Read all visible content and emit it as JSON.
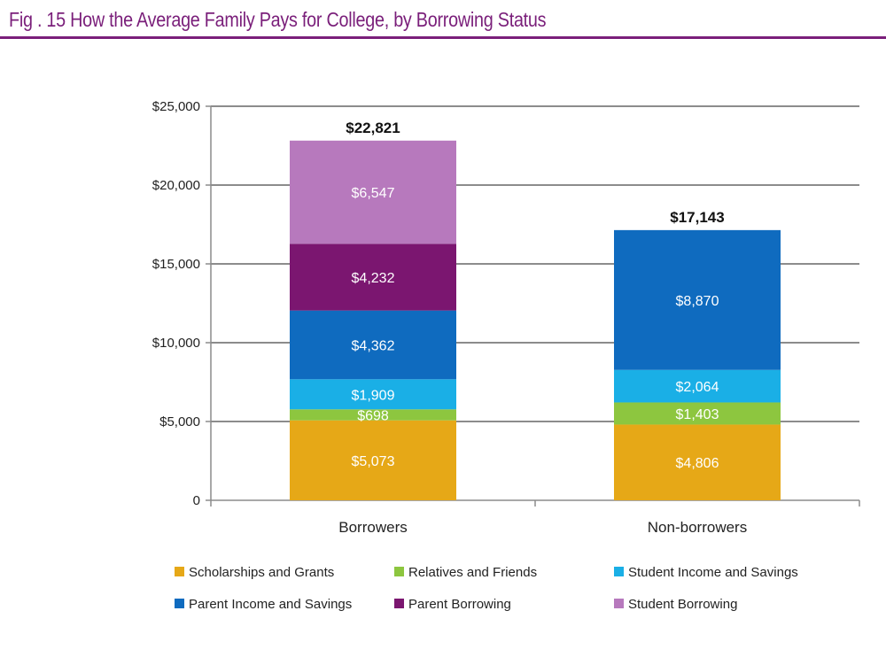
{
  "figure": {
    "title": "Fig . 15  How the Average Family Pays for College, by Borrowing Status",
    "accent_color": "#7a1f7a"
  },
  "chart_data": {
    "type": "bar",
    "stacked": true,
    "categories": [
      "Borrowers",
      "Non-borrowers"
    ],
    "series": [
      {
        "name": "Scholarships and Grants",
        "color": "#e6a817",
        "values": [
          5073,
          4806
        ],
        "labels": [
          "$5,073",
          "$4,806"
        ]
      },
      {
        "name": "Relatives and Friends",
        "color": "#8dc63f",
        "values": [
          698,
          1403
        ],
        "labels": [
          "$698",
          "$1,403"
        ]
      },
      {
        "name": "Student Income and Savings",
        "color": "#1aafe6",
        "values": [
          1909,
          2064
        ],
        "labels": [
          "$1,909",
          "$2,064"
        ]
      },
      {
        "name": "Parent Income and Savings",
        "color": "#0f6bbf",
        "values": [
          4362,
          8870
        ],
        "labels": [
          "$4,362",
          "$8,870"
        ]
      },
      {
        "name": "Parent Borrowing",
        "color": "#7b1670",
        "values": [
          4232,
          0
        ],
        "labels": [
          "$4,232",
          ""
        ]
      },
      {
        "name": "Student Borrowing",
        "color": "#b779bd",
        "values": [
          6547,
          0
        ],
        "labels": [
          "$6,547",
          ""
        ]
      }
    ],
    "totals": [
      22821,
      17143
    ],
    "total_labels": [
      "$22,821",
      "$17,143"
    ],
    "ylim": [
      0,
      25000
    ],
    "yticks": [
      0,
      5000,
      10000,
      15000,
      20000,
      25000
    ],
    "ytick_labels": [
      "0",
      "$5,000",
      "$10,000",
      "$15,000",
      "$20,000",
      "$25,000"
    ],
    "grid": true,
    "legend_position": "bottom",
    "xlabel": "",
    "ylabel": ""
  }
}
